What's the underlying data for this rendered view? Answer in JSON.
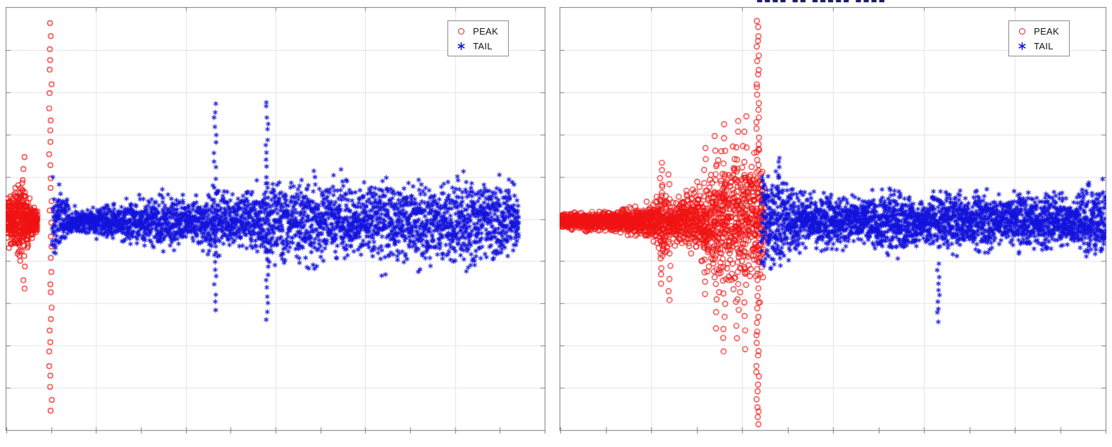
{
  "chart_data": [
    {
      "type": "scatter",
      "title": "",
      "xlabel": "",
      "ylabel": "",
      "tick_labels_visible": false,
      "xlim": null,
      "ylim": null,
      "grid": true,
      "grid_x_divisions": 6,
      "grid_y_divisions": 10,
      "x_minor_tick_divisions": 12,
      "band_center_frac": 0.505,
      "frame_color": "#7b7b7b",
      "grid_color": "#e3e3e3",
      "legend": {
        "position": "top-right",
        "entries": [
          {
            "label": "PEAK",
            "marker": "circle",
            "color": "#f01414"
          },
          {
            "label": "TAIL",
            "marker": "asterisk",
            "color": "#1414dc"
          }
        ]
      },
      "series": [
        {
          "name": "PEAK",
          "marker": "circle",
          "color": "#f01414",
          "marker_size": 3.4,
          "band": {
            "x0": 0.0,
            "x1": 0.058,
            "n": 420,
            "envelope": [
              [
                0,
                0.12
              ],
              [
                0.012,
                0.19
              ],
              [
                0.028,
                0.23
              ],
              [
                0.045,
                0.12
              ],
              [
                0.058,
                0.06
              ]
            ]
          },
          "columns": [
            {
              "x": 0.032,
              "ymin": -0.33,
              "ymax": 0.3,
              "n": 12
            },
            {
              "x": 0.082,
              "ymin": -0.9,
              "ymax": 0.93,
              "n": 34
            }
          ]
        },
        {
          "name": "TAIL",
          "marker": "asterisk",
          "color": "#1414dc",
          "marker_size": 3.6,
          "band": {
            "x0": 0.085,
            "x1": 0.952,
            "n": 3000,
            "envelope": [
              [
                0.085,
                0.26
              ],
              [
                0.1,
                0.22
              ],
              [
                0.115,
                0.1
              ],
              [
                0.15,
                0.08
              ],
              [
                0.19,
                0.11
              ],
              [
                0.23,
                0.13
              ],
              [
                0.27,
                0.16
              ],
              [
                0.3,
                0.18
              ],
              [
                0.33,
                0.14
              ],
              [
                0.36,
                0.17
              ],
              [
                0.388,
                0.24
              ],
              [
                0.42,
                0.17
              ],
              [
                0.455,
                0.2
              ],
              [
                0.484,
                0.27
              ],
              [
                0.51,
                0.3
              ],
              [
                0.535,
                0.25
              ],
              [
                0.56,
                0.34
              ],
              [
                0.59,
                0.22
              ],
              [
                0.62,
                0.29
              ],
              [
                0.65,
                0.22
              ],
              [
                0.68,
                0.27
              ],
              [
                0.71,
                0.31
              ],
              [
                0.74,
                0.24
              ],
              [
                0.77,
                0.29
              ],
              [
                0.8,
                0.22
              ],
              [
                0.83,
                0.26
              ],
              [
                0.86,
                0.31
              ],
              [
                0.89,
                0.24
              ],
              [
                0.915,
                0.29
              ],
              [
                0.94,
                0.23
              ],
              [
                0.952,
                0.16
              ]
            ]
          },
          "columns": [
            {
              "x": 0.388,
              "ymin": -0.42,
              "ymax": 0.56,
              "n": 26
            },
            {
              "x": 0.484,
              "ymin": -0.46,
              "ymax": 0.57,
              "n": 30
            }
          ]
        }
      ]
    },
    {
      "type": "scatter",
      "title": "",
      "cropped_title_remnant": "■■■■ ■■ ■■■■■ ■■■■",
      "xlabel": "",
      "ylabel": "",
      "tick_labels_visible": false,
      "xlim": null,
      "ylim": null,
      "grid": true,
      "grid_x_divisions": 6,
      "grid_y_divisions": 10,
      "x_minor_tick_divisions": 12,
      "band_center_frac": 0.505,
      "frame_color": "#7b7b7b",
      "grid_color": "#e3e3e3",
      "legend": {
        "position": "top-right",
        "entries": [
          {
            "label": "PEAK",
            "marker": "circle",
            "color": "#f01414"
          },
          {
            "label": "TAIL",
            "marker": "asterisk",
            "color": "#1414dc"
          }
        ]
      },
      "series": [
        {
          "name": "PEAK",
          "marker": "circle",
          "color": "#f01414",
          "marker_size": 3.6,
          "band": {
            "x0": 0.0,
            "x1": 0.375,
            "n": 1750,
            "envelope": [
              [
                0,
                0.05
              ],
              [
                0.05,
                0.06
              ],
              [
                0.1,
                0.07
              ],
              [
                0.14,
                0.09
              ],
              [
                0.17,
                0.12
              ],
              [
                0.19,
                0.22
              ],
              [
                0.205,
                0.13
              ],
              [
                0.23,
                0.16
              ],
              [
                0.25,
                0.24
              ],
              [
                0.27,
                0.3
              ],
              [
                0.29,
                0.38
              ],
              [
                0.31,
                0.42
              ],
              [
                0.33,
                0.46
              ],
              [
                0.35,
                0.4
              ],
              [
                0.363,
                0.5
              ],
              [
                0.375,
                0.32
              ]
            ]
          },
          "columns": [
            {
              "x": 0.185,
              "ymin": -0.3,
              "ymax": 0.28,
              "n": 16
            },
            {
              "x": 0.2,
              "ymin": -0.38,
              "ymax": 0.22,
              "n": 12
            },
            {
              "x": 0.265,
              "ymin": -0.35,
              "ymax": 0.35,
              "n": 14
            },
            {
              "x": 0.285,
              "ymin": -0.5,
              "ymax": 0.4,
              "n": 14
            },
            {
              "x": 0.3,
              "ymin": -0.62,
              "ymax": 0.45,
              "n": 20
            },
            {
              "x": 0.325,
              "ymin": -0.55,
              "ymax": 0.48,
              "n": 18
            },
            {
              "x": 0.34,
              "ymin": -0.6,
              "ymax": 0.5,
              "n": 16
            },
            {
              "x": 0.362,
              "ymin": -0.97,
              "ymax": 0.95,
              "n": 60
            }
          ]
        },
        {
          "name": "TAIL",
          "marker": "asterisk",
          "color": "#1414dc",
          "marker_size": 3.6,
          "band": {
            "x0": 0.368,
            "x1": 1.0,
            "n": 2600,
            "envelope": [
              [
                0.368,
                0.35
              ],
              [
                0.385,
                0.3
              ],
              [
                0.4,
                0.28
              ],
              [
                0.43,
                0.2
              ],
              [
                0.46,
                0.16
              ],
              [
                0.49,
                0.2
              ],
              [
                0.52,
                0.16
              ],
              [
                0.55,
                0.13
              ],
              [
                0.58,
                0.18
              ],
              [
                0.61,
                0.22
              ],
              [
                0.64,
                0.18
              ],
              [
                0.66,
                0.14
              ],
              [
                0.69,
                0.16
              ],
              [
                0.72,
                0.2
              ],
              [
                0.75,
                0.16
              ],
              [
                0.78,
                0.19
              ],
              [
                0.81,
                0.15
              ],
              [
                0.84,
                0.2
              ],
              [
                0.87,
                0.16
              ],
              [
                0.9,
                0.19
              ],
              [
                0.93,
                0.16
              ],
              [
                0.96,
                0.2
              ],
              [
                1.0,
                0.24
              ]
            ]
          },
          "columns": [
            {
              "x": 0.4,
              "ymin": 0.12,
              "ymax": 0.3,
              "n": 8
            },
            {
              "x": 0.693,
              "ymin": -0.47,
              "ymax": -0.2,
              "n": 10
            }
          ]
        }
      ]
    }
  ]
}
